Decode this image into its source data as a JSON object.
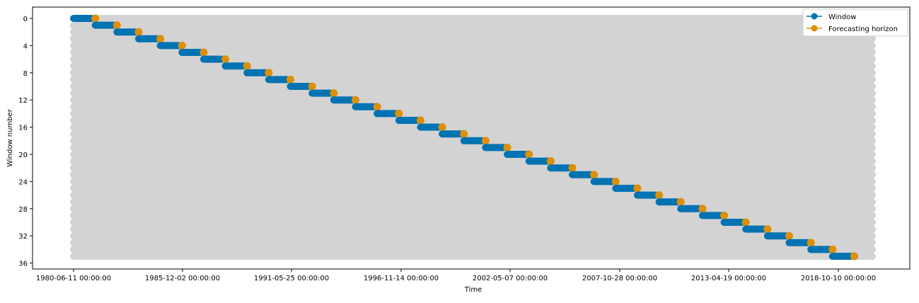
{
  "chart_data": {
    "type": "line",
    "title": "",
    "xlabel": "Time",
    "ylabel": "Window number",
    "y_inverted": true,
    "ylim": [
      36.5,
      -1
    ],
    "grid": false,
    "legend_placement": "top-right",
    "n_windows": 36,
    "x_ticks": [
      "1980-06-11 00:00:00",
      "1985-12-02 00:00:00",
      "1991-05-25 00:00:00",
      "1996-11-14 00:00:00",
      "2002-05-07 00:00:00",
      "2007-10-28 00:00:00",
      "2013-04-19 00:00:00",
      "2018-10-10 00:00:00"
    ],
    "y_ticks": [
      "0",
      "4",
      "8",
      "12",
      "16",
      "20",
      "24",
      "28",
      "32",
      "36"
    ],
    "series": [
      {
        "name": "Window",
        "color": "#0173b2",
        "marker": "circle",
        "description_of_values": "each window spans 6 time steps starting at window_number * 6",
        "windows": [
          {
            "window": 0,
            "start_step": 0,
            "end_step": 5
          },
          {
            "window": 1,
            "start_step": 6,
            "end_step": 11
          },
          {
            "window": 35,
            "start_step": 210,
            "end_step": 215
          }
        ]
      },
      {
        "name": "Forecasting horizon",
        "color": "#de8f05",
        "marker": "circle",
        "offset_steps_after_window": 1
      }
    ],
    "background_series_color": "#d3d3d3",
    "total_time_steps": 222
  }
}
